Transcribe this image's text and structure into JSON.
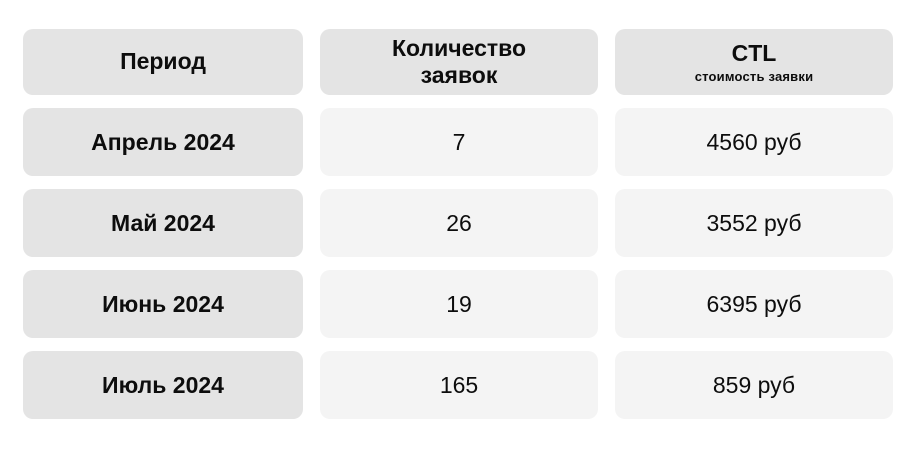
{
  "chart_data": {
    "type": "table",
    "columns": [
      {
        "title": "Период"
      },
      {
        "title": "Количество заявок"
      },
      {
        "title": "CTL",
        "subtitle": "стоимость заявки"
      }
    ],
    "rows": [
      {
        "period": "Апрель 2024",
        "applications": 7,
        "cost_per_lead_rub": 4560,
        "cost_display": "4560 руб"
      },
      {
        "period": "Май 2024",
        "applications": 26,
        "cost_per_lead_rub": 3552,
        "cost_display": "3552 руб"
      },
      {
        "period": "Июнь 2024",
        "applications": 19,
        "cost_per_lead_rub": 6395,
        "cost_display": "6395 руб"
      },
      {
        "period": "Июль 2024",
        "applications": 165,
        "cost_per_lead_rub": 859,
        "cost_display": "859 руб"
      }
    ],
    "currency": "руб",
    "layout": {
      "grid": "off",
      "header_position": "top"
    }
  },
  "colors": {
    "header_cell_bg": "#e4e4e4",
    "period_cell_bg": "#e4e4e4",
    "value_cell_bg": "#f4f4f4",
    "text": "#0d0d0d",
    "page_bg": "#ffffff"
  }
}
